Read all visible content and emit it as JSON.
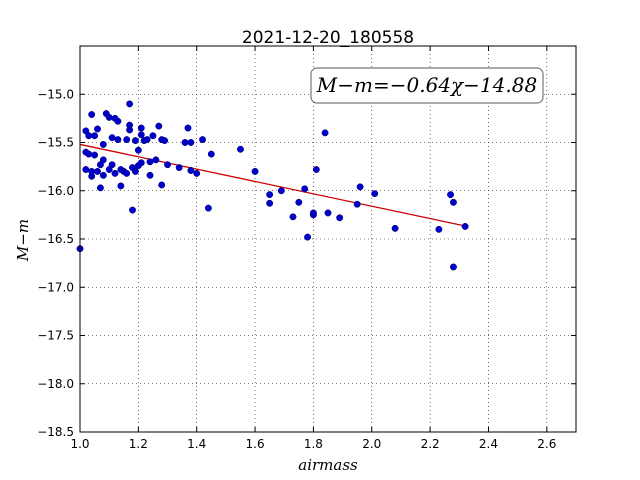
{
  "chart_data": {
    "type": "scatter",
    "title": "2021-12-20_180558",
    "xlabel": "airmass",
    "ylabel": "M−m",
    "xlim": [
      1.0,
      2.7
    ],
    "ylim": [
      -18.5,
      -14.5
    ],
    "y_inverted": true,
    "grid": true,
    "x_ticks": [
      "1.0",
      "1.2",
      "1.4",
      "1.6",
      "1.8",
      "2.0",
      "2.2",
      "2.4",
      "2.6"
    ],
    "y_ticks": [
      "−15.0",
      "−15.5",
      "−16.0",
      "−16.5",
      "−17.0",
      "−17.5",
      "−18.0",
      "−18.5"
    ],
    "annotation": "M−m=−0.64χ−14.88",
    "point_color": "#0000cc",
    "fit_color": "#cc0000",
    "fit": {
      "slope": -0.64,
      "intercept": -14.88,
      "x_range": [
        1.0,
        2.32
      ]
    },
    "points": [
      [
        1.0,
        -16.6
      ],
      [
        1.02,
        -15.38
      ],
      [
        1.02,
        -15.6
      ],
      [
        1.02,
        -15.78
      ],
      [
        1.03,
        -15.43
      ],
      [
        1.03,
        -15.62
      ],
      [
        1.04,
        -15.21
      ],
      [
        1.04,
        -15.8
      ],
      [
        1.04,
        -15.85
      ],
      [
        1.05,
        -15.43
      ],
      [
        1.05,
        -15.63
      ],
      [
        1.06,
        -15.36
      ],
      [
        1.06,
        -15.8
      ],
      [
        1.07,
        -15.97
      ],
      [
        1.07,
        -15.73
      ],
      [
        1.08,
        -15.68
      ],
      [
        1.08,
        -15.84
      ],
      [
        1.08,
        -15.52
      ],
      [
        1.09,
        -15.2
      ],
      [
        1.1,
        -15.24
      ],
      [
        1.1,
        -15.78
      ],
      [
        1.11,
        -15.45
      ],
      [
        1.11,
        -15.73
      ],
      [
        1.12,
        -15.25
      ],
      [
        1.12,
        -15.82
      ],
      [
        1.13,
        -15.47
      ],
      [
        1.13,
        -15.28
      ],
      [
        1.14,
        -15.95
      ],
      [
        1.14,
        -15.78
      ],
      [
        1.15,
        -15.8
      ],
      [
        1.16,
        -15.82
      ],
      [
        1.16,
        -15.47
      ],
      [
        1.17,
        -15.1
      ],
      [
        1.17,
        -15.32
      ],
      [
        1.17,
        -15.37
      ],
      [
        1.18,
        -15.76
      ],
      [
        1.18,
        -16.2
      ],
      [
        1.19,
        -15.8
      ],
      [
        1.19,
        -15.48
      ],
      [
        1.2,
        -15.74
      ],
      [
        1.2,
        -15.58
      ],
      [
        1.21,
        -15.35
      ],
      [
        1.21,
        -15.42
      ],
      [
        1.21,
        -15.71
      ],
      [
        1.22,
        -15.48
      ],
      [
        1.23,
        -15.47
      ],
      [
        1.24,
        -15.84
      ],
      [
        1.24,
        -15.7
      ],
      [
        1.25,
        -15.43
      ],
      [
        1.26,
        -15.68
      ],
      [
        1.27,
        -15.33
      ],
      [
        1.28,
        -15.47
      ],
      [
        1.28,
        -15.94
      ],
      [
        1.29,
        -15.48
      ],
      [
        1.3,
        -15.73
      ],
      [
        1.34,
        -15.76
      ],
      [
        1.36,
        -15.5
      ],
      [
        1.37,
        -15.35
      ],
      [
        1.38,
        -15.5
      ],
      [
        1.38,
        -15.79
      ],
      [
        1.4,
        -15.82
      ],
      [
        1.42,
        -15.47
      ],
      [
        1.44,
        -16.18
      ],
      [
        1.45,
        -15.62
      ],
      [
        1.55,
        -15.57
      ],
      [
        1.6,
        -15.8
      ],
      [
        1.65,
        -16.04
      ],
      [
        1.65,
        -16.13
      ],
      [
        1.69,
        -16.0
      ],
      [
        1.73,
        -16.27
      ],
      [
        1.75,
        -16.12
      ],
      [
        1.77,
        -15.98
      ],
      [
        1.78,
        -16.48
      ],
      [
        1.8,
        -16.25
      ],
      [
        1.81,
        -15.78
      ],
      [
        1.8,
        -16.23
      ],
      [
        1.84,
        -15.4
      ],
      [
        1.85,
        -16.23
      ],
      [
        1.89,
        -16.28
      ],
      [
        1.95,
        -16.14
      ],
      [
        1.96,
        -15.96
      ],
      [
        2.01,
        -16.03
      ],
      [
        2.08,
        -16.39
      ],
      [
        2.23,
        -16.4
      ],
      [
        2.27,
        -16.04
      ],
      [
        2.28,
        -16.12
      ],
      [
        2.28,
        -16.79
      ],
      [
        2.32,
        -16.37
      ]
    ]
  }
}
